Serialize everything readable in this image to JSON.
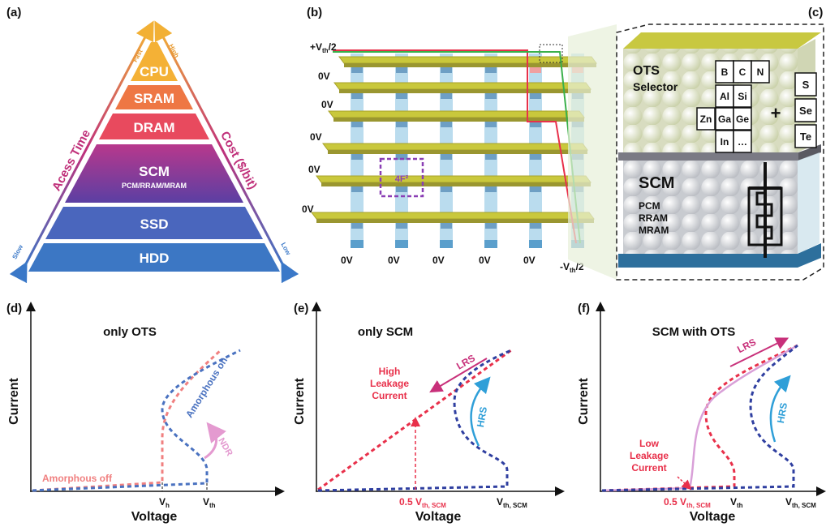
{
  "panels": {
    "a": {
      "label": "(a)",
      "levels": [
        "CPU",
        "SRAM",
        "DRAM",
        "SCM",
        "SSD",
        "HDD"
      ],
      "scm_sub": "PCM/RRAM/MRAM",
      "left_axis": "Acess Time",
      "right_axis": "Cost ($/bit)",
      "left_top": "Fast",
      "left_bottom": "Slow",
      "right_top": "High",
      "right_bottom": "Low"
    },
    "b": {
      "label": "(b)",
      "top_voltage": {
        "pre": "+V",
        "sub": "th",
        "post": "/2"
      },
      "row_voltages": [
        "0V",
        "0V",
        "0V",
        "0V",
        "0V"
      ],
      "column_voltages": [
        "0V",
        "0V",
        "0V",
        "0V",
        "0V"
      ],
      "bottom_voltage": {
        "pre": "-V",
        "sub": "th",
        "post": "/2"
      },
      "cell_area": "4F²"
    },
    "c": {
      "label": "(c)",
      "selector": [
        "OTS",
        "Selector"
      ],
      "elements": [
        "B",
        "C",
        "N",
        "Al",
        "Si",
        "Zn",
        "Ga",
        "Ge",
        "In",
        "…"
      ],
      "plus": "+",
      "chalcogens": [
        "S",
        "Se",
        "Te"
      ],
      "memory": "SCM",
      "memory_types": [
        "PCM",
        "RRAM",
        "MRAM"
      ]
    },
    "d": {
      "label": "(d)",
      "title": "only OTS",
      "y_axis": "Current",
      "x_axis": "Voltage",
      "on_label": "Amorphous on",
      "off_label": "Amorphous off",
      "ndr": "NDR",
      "vh": {
        "pre": "V",
        "sub": "h"
      },
      "vth": {
        "pre": "V",
        "sub": "th"
      }
    },
    "e": {
      "label": "(e)",
      "title": "only SCM",
      "y_axis": "Current",
      "x_axis": "Voltage",
      "lrs": "LRS",
      "hrs": "HRS",
      "leakage": [
        "High",
        "Leakage",
        "Current"
      ],
      "half": {
        "pre": "0.5 V",
        "sub": "th, SCM"
      },
      "vth_scm": {
        "pre": "V",
        "sub": "th, SCM"
      }
    },
    "f": {
      "label": "(f)",
      "title": "SCM with OTS",
      "y_axis": "Current",
      "x_axis": "Voltage",
      "lrs": "LRS",
      "hrs": "HRS",
      "leakage": [
        "Low",
        "Leakage",
        "Current"
      ],
      "half": {
        "pre": "0.5 V",
        "sub": "th, SCM"
      },
      "vth": {
        "pre": "V",
        "sub": "th"
      },
      "vth_scm": {
        "pre": "V",
        "sub": "th, SCM"
      }
    }
  }
}
